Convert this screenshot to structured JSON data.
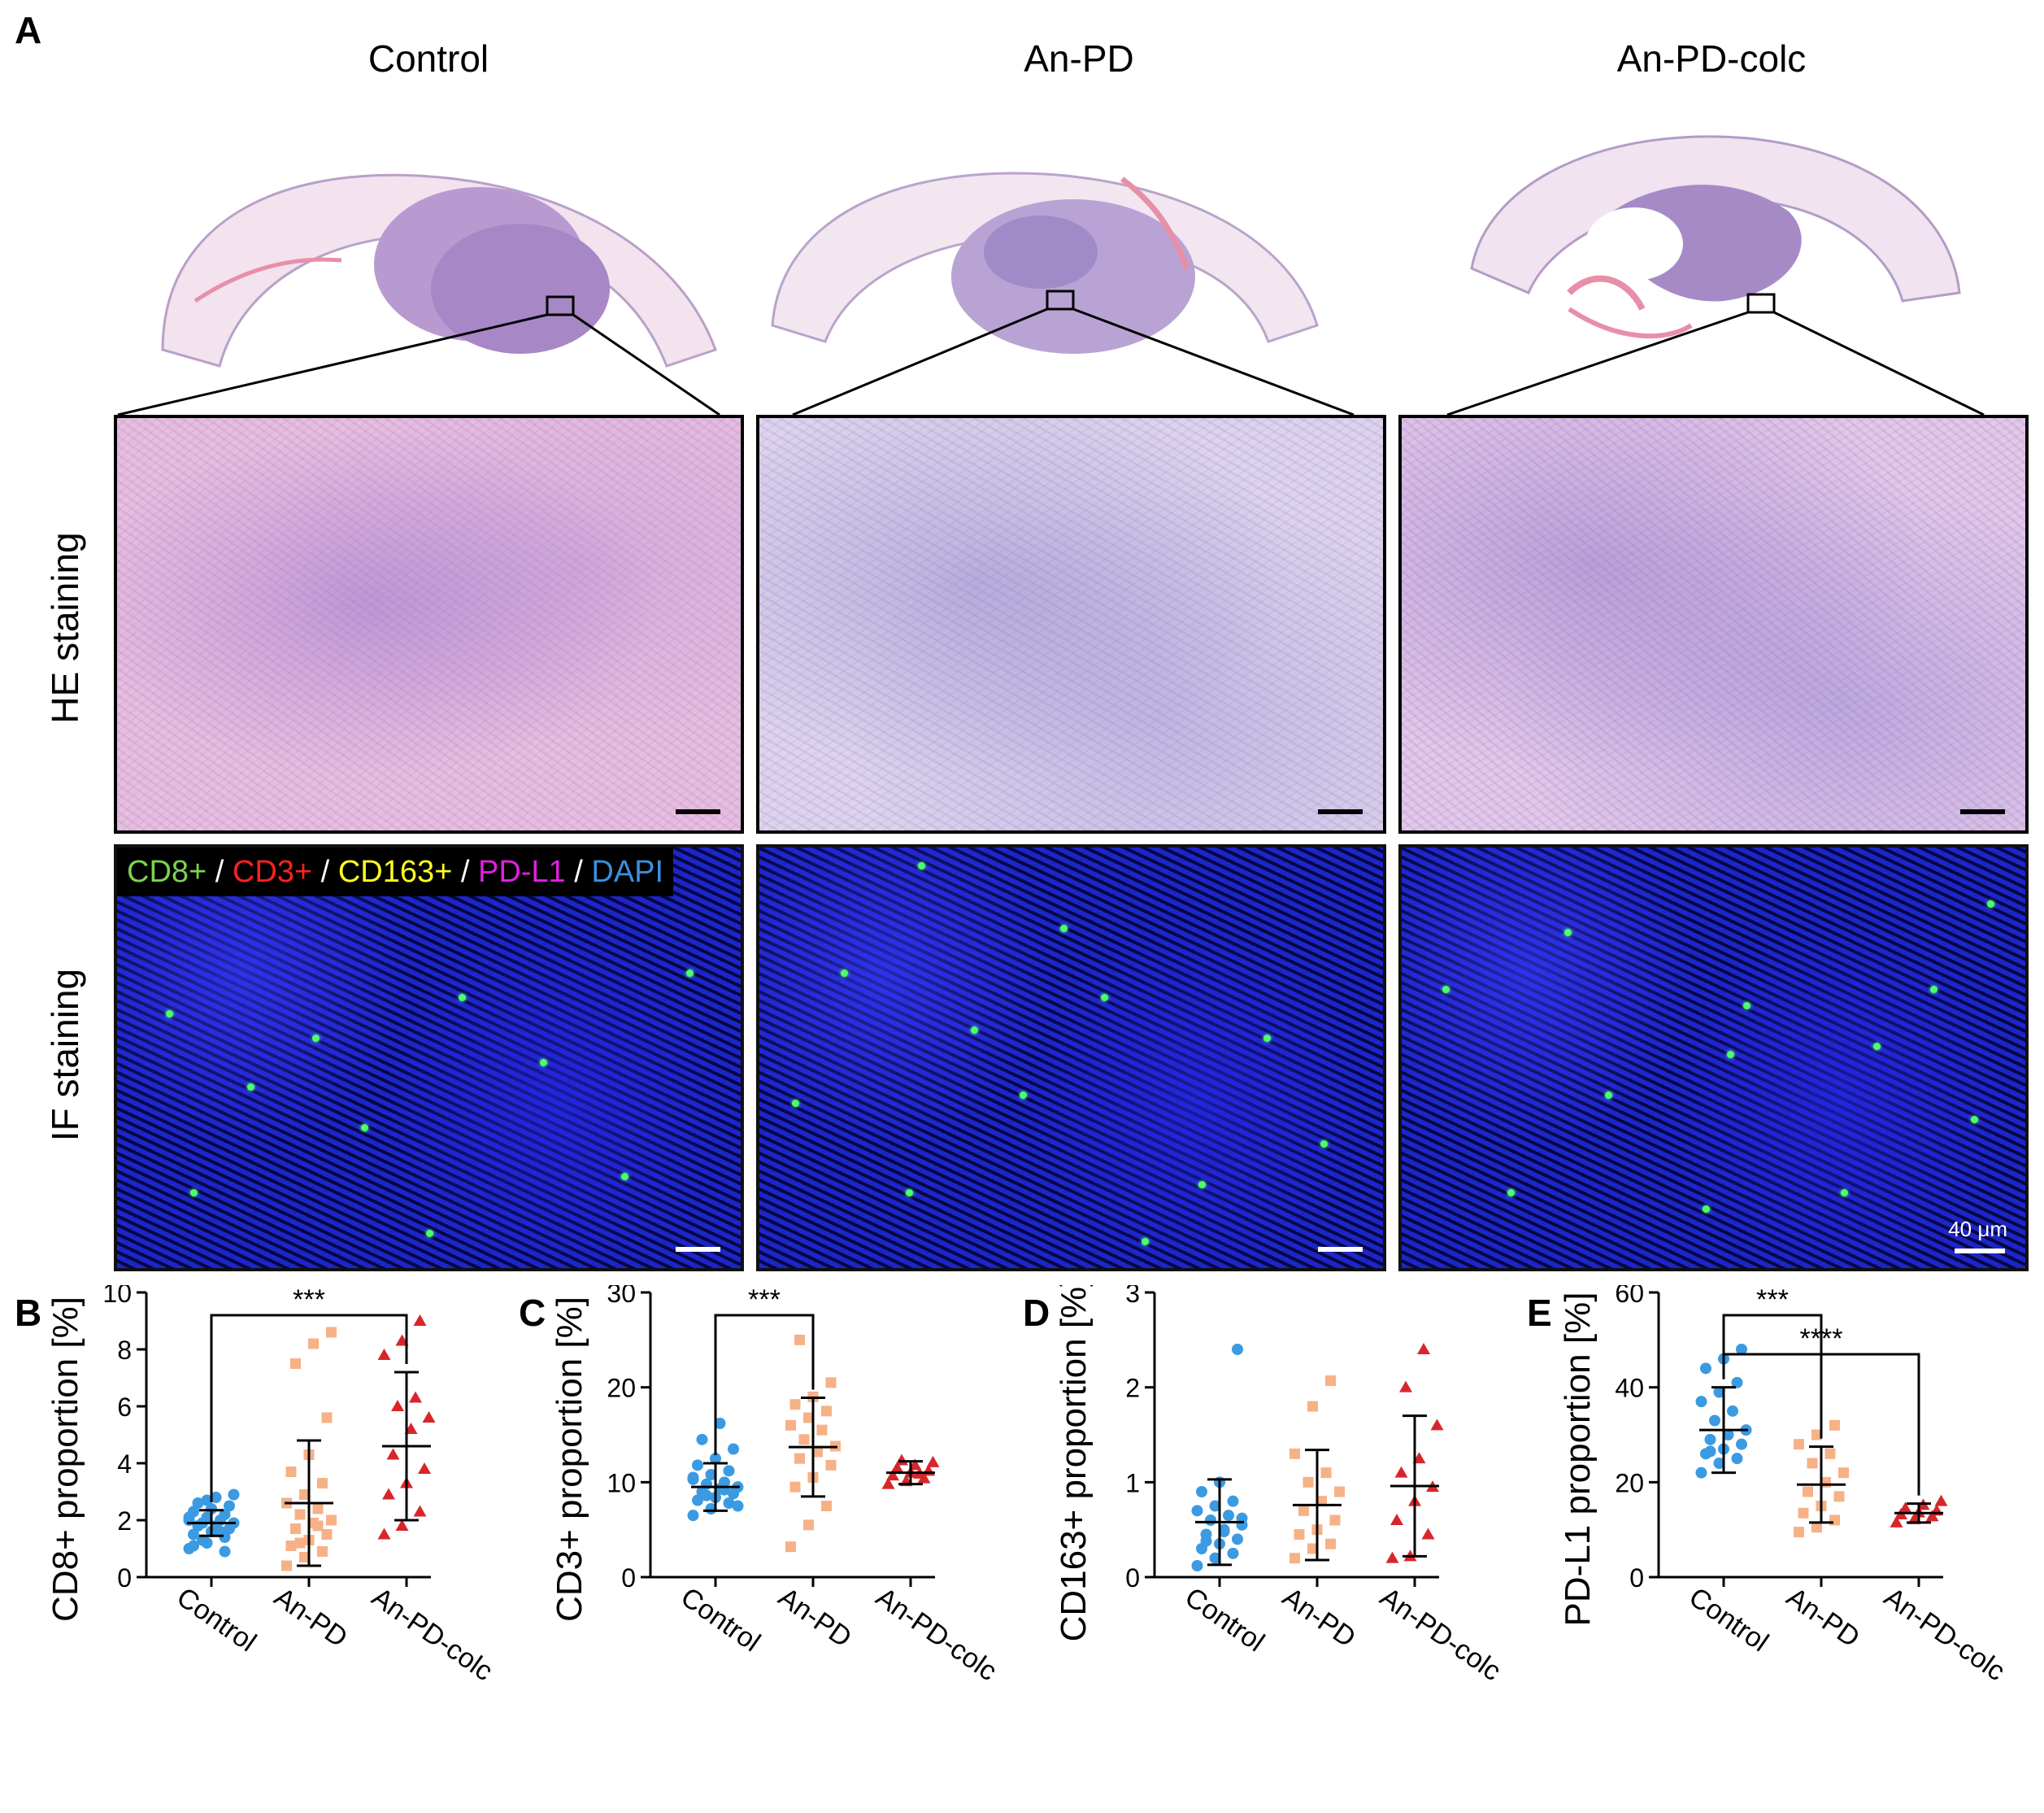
{
  "panels": {
    "A": "A",
    "B": "B",
    "C": "C",
    "D": "D",
    "E": "E"
  },
  "columns": [
    "Control",
    "An-PD",
    "An-PD-colc"
  ],
  "rows": {
    "he": "HE staining",
    "if": "IF staining"
  },
  "legend": {
    "cd8": "CD8+",
    "cd3": "CD3+",
    "cd163": "CD163+",
    "pdl1": "PD-L1",
    "dapi": "DAPI",
    "sep": " / "
  },
  "scale_bar_label": "40 μm",
  "colors": {
    "control": "#3b9ae1",
    "anpd": "#f7b187",
    "anpdcolc": "#d7262b",
    "cd8": "#7cd34f",
    "cd3": "#ff2020",
    "cd163": "#ffff20",
    "pdl1": "#e020e0",
    "dapi": "#3a8fe0"
  },
  "chart_data": [
    {
      "id": "B",
      "type": "scatter",
      "ylabel": "CD8+ proportion [%]",
      "categories": [
        "Control",
        "An-PD",
        "An-PD-colc"
      ],
      "ylim": [
        0,
        10
      ],
      "yticks": [
        0,
        2,
        4,
        6,
        8,
        10
      ],
      "groups": [
        {
          "name": "Control",
          "mean": 1.9,
          "sd": 0.45,
          "points": [
            1.0,
            1.2,
            1.4,
            1.5,
            1.6,
            1.7,
            1.8,
            1.8,
            1.9,
            1.9,
            2.0,
            2.0,
            2.1,
            2.2,
            2.3,
            2.4,
            2.5,
            2.6,
            2.8,
            2.9,
            1.3,
            1.6,
            2.1,
            2.7,
            0.9,
            1.1
          ]
        },
        {
          "name": "An-PD",
          "mean": 2.6,
          "sd": 2.2,
          "points": [
            0.4,
            0.7,
            0.9,
            1.1,
            1.3,
            1.5,
            1.7,
            1.9,
            2.0,
            2.2,
            2.4,
            2.6,
            2.9,
            3.3,
            3.7,
            4.3,
            5.6,
            7.5,
            8.2,
            8.6,
            1.2,
            1.8
          ]
        },
        {
          "name": "An-PD-colc",
          "mean": 4.6,
          "sd": 2.6,
          "points": [
            1.5,
            1.8,
            2.3,
            2.9,
            3.3,
            3.8,
            4.3,
            5.2,
            5.6,
            6.0,
            6.3,
            7.8,
            8.3,
            9.0
          ]
        }
      ],
      "significance": [
        {
          "from": "Control",
          "to": "An-PD-colc",
          "label": "***"
        }
      ]
    },
    {
      "id": "C",
      "type": "scatter",
      "ylabel": "CD3+ proportion [%]",
      "categories": [
        "Control",
        "An-PD",
        "An-PD-colc"
      ],
      "ylim": [
        0,
        30
      ],
      "yticks": [
        0,
        10,
        20,
        30
      ],
      "groups": [
        {
          "name": "Control",
          "mean": 9.5,
          "sd": 2.5,
          "points": [
            6.5,
            7.2,
            7.8,
            8.1,
            8.4,
            8.8,
            9.0,
            9.3,
            9.5,
            9.8,
            10.0,
            10.3,
            10.8,
            11.2,
            11.8,
            12.5,
            13.5,
            14.5,
            16.2,
            7.5,
            8.6,
            9.2,
            10.5
          ]
        },
        {
          "name": "An-PD",
          "mean": 13.7,
          "sd": 5.2,
          "points": [
            3.2,
            5.5,
            7.5,
            9.5,
            10.5,
            11.8,
            12.5,
            13.2,
            13.8,
            14.5,
            15.5,
            16.0,
            16.8,
            17.5,
            18.2,
            19.0,
            20.5,
            25.0
          ]
        },
        {
          "name": "An-PD-colc",
          "mean": 11.0,
          "sd": 1.2,
          "points": [
            9.8,
            10.1,
            10.4,
            10.7,
            11.0,
            11.2,
            11.5,
            11.8,
            12.1,
            12.3,
            10.9
          ]
        }
      ],
      "significance": [
        {
          "from": "Control",
          "to": "An-PD",
          "label": "***"
        }
      ]
    },
    {
      "id": "D",
      "type": "scatter",
      "ylabel": "CD163+ proportion [%]",
      "categories": [
        "Control",
        "An-PD",
        "An-PD-colc"
      ],
      "ylim": [
        0,
        3
      ],
      "yticks": [
        0,
        1,
        2,
        3
      ],
      "groups": [
        {
          "name": "Control",
          "mean": 0.58,
          "sd": 0.45,
          "points": [
            0.12,
            0.2,
            0.25,
            0.3,
            0.35,
            0.4,
            0.45,
            0.5,
            0.55,
            0.6,
            0.65,
            0.7,
            0.75,
            0.8,
            0.9,
            1.0,
            2.4,
            0.38,
            0.48,
            0.62
          ]
        },
        {
          "name": "An-PD",
          "mean": 0.76,
          "sd": 0.58,
          "points": [
            0.2,
            0.3,
            0.35,
            0.45,
            0.5,
            0.6,
            0.7,
            0.8,
            0.9,
            1.0,
            1.1,
            1.3,
            1.8,
            2.07
          ]
        },
        {
          "name": "An-PD-colc",
          "mean": 0.96,
          "sd": 0.74,
          "points": [
            0.2,
            0.22,
            0.45,
            0.6,
            0.8,
            0.95,
            1.1,
            1.25,
            1.6,
            2.0,
            2.4
          ]
        }
      ],
      "significance": []
    },
    {
      "id": "E",
      "type": "scatter",
      "ylabel": "PD-L1 proportion [%]",
      "categories": [
        "Control",
        "An-PD",
        "An-PD-colc"
      ],
      "ylim": [
        0,
        60
      ],
      "yticks": [
        0,
        20,
        40,
        60
      ],
      "groups": [
        {
          "name": "Control",
          "mean": 31,
          "sd": 9,
          "points": [
            22,
            24,
            25,
            26,
            27,
            28,
            29,
            30,
            31,
            33,
            35,
            37,
            39,
            41,
            44,
            46,
            48,
            26.5
          ]
        },
        {
          "name": "An-PD",
          "mean": 19.5,
          "sd": 8,
          "points": [
            9.5,
            10.5,
            12,
            13.5,
            15,
            17,
            18,
            20,
            22,
            24,
            26,
            28,
            30,
            32
          ]
        },
        {
          "name": "An-PD-colc",
          "mean": 13.5,
          "sd": 2,
          "points": [
            11.5,
            12.2,
            12.8,
            13.2,
            13.6,
            14.0,
            14.5,
            15.2,
            16.0
          ]
        }
      ],
      "significance": [
        {
          "from": "Control",
          "to": "An-PD",
          "label": "***"
        },
        {
          "from": "Control",
          "to": "An-PD-colc",
          "label": "****"
        }
      ]
    }
  ]
}
